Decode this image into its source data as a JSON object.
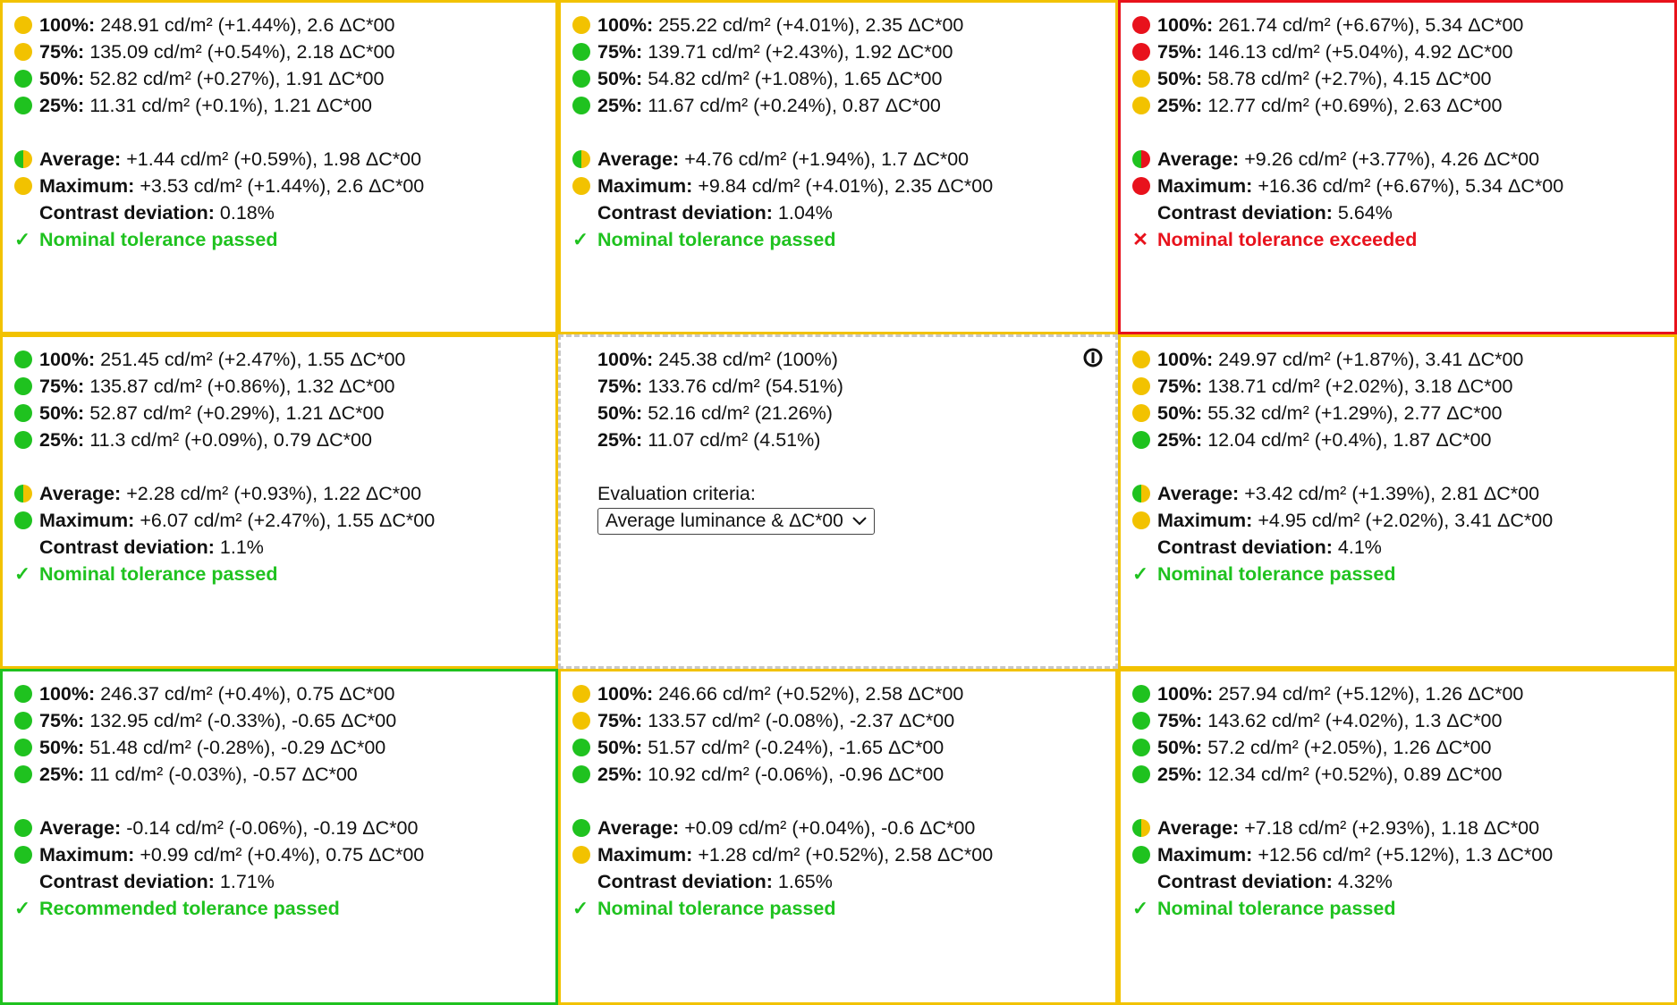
{
  "cells": [
    {
      "rows": [
        {
          "label": "100%:",
          "value": "248.91 cd/m² (+1.44%), 2.6 ΔC*00"
        },
        {
          "label": "75%:",
          "value": "135.09 cd/m² (+0.54%), 2.18 ΔC*00"
        },
        {
          "label": "50%:",
          "value": "52.82 cd/m² (+0.27%), 1.91 ΔC*00"
        },
        {
          "label": "25%:",
          "value": "11.31 cd/m² (+0.1%), 1.21 ΔC*00"
        }
      ],
      "average": {
        "label": "Average:",
        "value": "+1.44 cd/m² (+0.59%), 1.98 ΔC*00"
      },
      "maximum": {
        "label": "Maximum:",
        "value": "+3.53 cd/m² (+1.44%), 2.6 ΔC*00"
      },
      "contrast": {
        "label": "Contrast deviation:",
        "value": "0.18%"
      },
      "result": {
        "mark": "✓",
        "text": "Nominal tolerance passed"
      }
    },
    {
      "rows": [
        {
          "label": "100%:",
          "value": "255.22 cd/m² (+4.01%), 2.35 ΔC*00"
        },
        {
          "label": "75%:",
          "value": "139.71 cd/m² (+2.43%), 1.92 ΔC*00"
        },
        {
          "label": "50%:",
          "value": "54.82 cd/m² (+1.08%), 1.65 ΔC*00"
        },
        {
          "label": "25%:",
          "value": "11.67 cd/m² (+0.24%), 0.87 ΔC*00"
        }
      ],
      "average": {
        "label": "Average:",
        "value": "+4.76 cd/m² (+1.94%), 1.7 ΔC*00"
      },
      "maximum": {
        "label": "Maximum:",
        "value": "+9.84 cd/m² (+4.01%), 2.35 ΔC*00"
      },
      "contrast": {
        "label": "Contrast deviation:",
        "value": "1.04%"
      },
      "result": {
        "mark": "✓",
        "text": "Nominal tolerance passed"
      }
    },
    {
      "rows": [
        {
          "label": "100%:",
          "value": "261.74 cd/m² (+6.67%), 5.34 ΔC*00"
        },
        {
          "label": "75%:",
          "value": "146.13 cd/m² (+5.04%), 4.92 ΔC*00"
        },
        {
          "label": "50%:",
          "value": "58.78 cd/m² (+2.7%), 4.15 ΔC*00"
        },
        {
          "label": "25%:",
          "value": "12.77 cd/m² (+0.69%), 2.63 ΔC*00"
        }
      ],
      "average": {
        "label": "Average:",
        "value": "+9.26 cd/m² (+3.77%), 4.26 ΔC*00"
      },
      "maximum": {
        "label": "Maximum:",
        "value": "+16.36 cd/m² (+6.67%), 5.34 ΔC*00"
      },
      "contrast": {
        "label": "Contrast deviation:",
        "value": "5.64%"
      },
      "result": {
        "mark": "✕",
        "text": "Nominal tolerance exceeded"
      }
    },
    {
      "rows": [
        {
          "label": "100%:",
          "value": "251.45 cd/m² (+2.47%), 1.55 ΔC*00"
        },
        {
          "label": "75%:",
          "value": "135.87 cd/m² (+0.86%), 1.32 ΔC*00"
        },
        {
          "label": "50%:",
          "value": "52.87 cd/m² (+0.29%), 1.21 ΔC*00"
        },
        {
          "label": "25%:",
          "value": "11.3 cd/m² (+0.09%), 0.79 ΔC*00"
        }
      ],
      "average": {
        "label": "Average:",
        "value": "+2.28 cd/m² (+0.93%), 1.22 ΔC*00"
      },
      "maximum": {
        "label": "Maximum:",
        "value": "+6.07 cd/m² (+2.47%), 1.55 ΔC*00"
      },
      "contrast": {
        "label": "Contrast deviation:",
        "value": "1.1%"
      },
      "result": {
        "mark": "✓",
        "text": "Nominal tolerance passed"
      }
    },
    {
      "rows": [
        {
          "label": "100%:",
          "value": "249.97 cd/m² (+1.87%), 3.41 ΔC*00"
        },
        {
          "label": "75%:",
          "value": "138.71 cd/m² (+2.02%), 3.18 ΔC*00"
        },
        {
          "label": "50%:",
          "value": "55.32 cd/m² (+1.29%), 2.77 ΔC*00"
        },
        {
          "label": "25%:",
          "value": "12.04 cd/m² (+0.4%), 1.87 ΔC*00"
        }
      ],
      "average": {
        "label": "Average:",
        "value": "+3.42 cd/m² (+1.39%), 2.81 ΔC*00"
      },
      "maximum": {
        "label": "Maximum:",
        "value": "+4.95 cd/m² (+2.02%), 3.41 ΔC*00"
      },
      "contrast": {
        "label": "Contrast deviation:",
        "value": "4.1%"
      },
      "result": {
        "mark": "✓",
        "text": "Nominal tolerance passed"
      }
    },
    {
      "rows": [
        {
          "label": "100%:",
          "value": "246.37 cd/m² (+0.4%), 0.75 ΔC*00"
        },
        {
          "label": "75%:",
          "value": "132.95 cd/m² (-0.33%), -0.65 ΔC*00"
        },
        {
          "label": "50%:",
          "value": "51.48 cd/m² (-0.28%), -0.29 ΔC*00"
        },
        {
          "label": "25%:",
          "value": "11 cd/m² (-0.03%), -0.57 ΔC*00"
        }
      ],
      "average": {
        "label": "Average:",
        "value": "-0.14 cd/m² (-0.06%), -0.19 ΔC*00"
      },
      "maximum": {
        "label": "Maximum:",
        "value": "+0.99 cd/m² (+0.4%), 0.75 ΔC*00"
      },
      "contrast": {
        "label": "Contrast deviation:",
        "value": "1.71%"
      },
      "result": {
        "mark": "✓",
        "text": "Recommended tolerance passed"
      }
    },
    {
      "rows": [
        {
          "label": "100%:",
          "value": "246.66 cd/m² (+0.52%), 2.58 ΔC*00"
        },
        {
          "label": "75%:",
          "value": "133.57 cd/m² (-0.08%), -2.37 ΔC*00"
        },
        {
          "label": "50%:",
          "value": "51.57 cd/m² (-0.24%), -1.65 ΔC*00"
        },
        {
          "label": "25%:",
          "value": "10.92 cd/m² (-0.06%), -0.96 ΔC*00"
        }
      ],
      "average": {
        "label": "Average:",
        "value": "+0.09 cd/m² (+0.04%), -0.6 ΔC*00"
      },
      "maximum": {
        "label": "Maximum:",
        "value": "+1.28 cd/m² (+0.52%), 2.58 ΔC*00"
      },
      "contrast": {
        "label": "Contrast deviation:",
        "value": "1.65%"
      },
      "result": {
        "mark": "✓",
        "text": "Nominal tolerance passed"
      }
    },
    {
      "rows": [
        {
          "label": "100%:",
          "value": "257.94 cd/m² (+5.12%), 1.26 ΔC*00"
        },
        {
          "label": "75%:",
          "value": "143.62 cd/m² (+4.02%), 1.3 ΔC*00"
        },
        {
          "label": "50%:",
          "value": "57.2 cd/m² (+2.05%), 1.26 ΔC*00"
        },
        {
          "label": "25%:",
          "value": "12.34 cd/m² (+0.52%), 0.89 ΔC*00"
        }
      ],
      "average": {
        "label": "Average:",
        "value": "+7.18 cd/m² (+2.93%), 1.18 ΔC*00"
      },
      "maximum": {
        "label": "Maximum:",
        "value": "+12.56 cd/m² (+5.12%), 1.3 ΔC*00"
      },
      "contrast": {
        "label": "Contrast deviation:",
        "value": "4.32%"
      },
      "result": {
        "mark": "✓",
        "text": "Nominal tolerance passed"
      }
    }
  ],
  "center": {
    "rows": [
      {
        "label": "100%:",
        "value": "245.38 cd/m² (100%)"
      },
      {
        "label": "75%:",
        "value": "133.76 cd/m² (54.51%)"
      },
      {
        "label": "50%:",
        "value": "52.16 cd/m² (21.26%)"
      },
      {
        "label": "25%:",
        "value": "11.07 cd/m² (4.51%)"
      }
    ],
    "criteria_label": "Evaluation criteria:",
    "criteria_selected": "Average luminance & ΔC*00",
    "icon": "center-reference-icon"
  },
  "colors": {
    "green": "#1fc21f",
    "yellow": "#f2c200",
    "red": "#e8121c",
    "dashed": "#c8c8c8"
  }
}
